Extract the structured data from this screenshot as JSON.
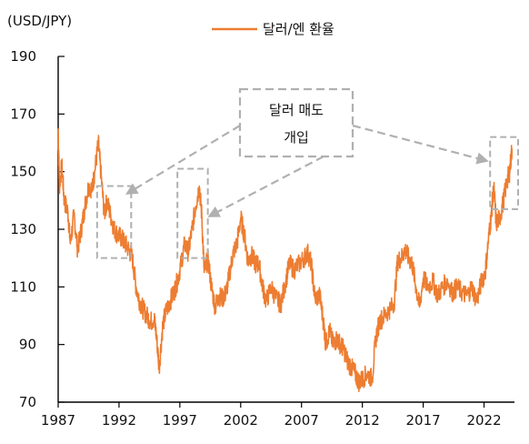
{
  "chart_data": {
    "type": "line",
    "unit_label": "(USD/JPY)",
    "title": "",
    "xlabel": "",
    "ylabel": "",
    "legend": {
      "position": "top-center",
      "entries": [
        "달러/엔 환율"
      ]
    },
    "grid": false,
    "xlim": [
      1987,
      2024.5
    ],
    "ylim": [
      70,
      190
    ],
    "x_ticks": [
      1987,
      1992,
      1997,
      2002,
      2007,
      2012,
      2017,
      2022
    ],
    "x_tick_labels": [
      "1987",
      "1992",
      "1997",
      "2002",
      "2007",
      "2012",
      "2017",
      "2022"
    ],
    "y_ticks": [
      70,
      90,
      110,
      130,
      150,
      170,
      190
    ],
    "y_tick_labels": [
      "70",
      "90",
      "110",
      "130",
      "150",
      "170",
      "190"
    ],
    "series": [
      {
        "name": "달러/엔 환율",
        "color": "#ED7D31",
        "x": [
          1987.0,
          1987.1,
          1987.3,
          1987.5,
          1987.8,
          1988.0,
          1988.3,
          1988.6,
          1988.9,
          1989.2,
          1989.5,
          1989.8,
          1990.0,
          1990.3,
          1990.5,
          1990.8,
          1991.0,
          1991.3,
          1991.6,
          1991.9,
          1992.2,
          1992.5,
          1992.8,
          1993.1,
          1993.4,
          1993.7,
          1994.0,
          1994.3,
          1994.6,
          1994.9,
          1995.1,
          1995.3,
          1995.6,
          1995.9,
          1996.2,
          1996.5,
          1996.8,
          1997.1,
          1997.4,
          1997.7,
          1998.0,
          1998.3,
          1998.6,
          1998.8,
          1999.0,
          1999.3,
          1999.6,
          1999.9,
          2000.2,
          2000.5,
          2000.8,
          2001.1,
          2001.4,
          2001.7,
          2002.0,
          2002.3,
          2002.6,
          2002.9,
          2003.2,
          2003.5,
          2003.8,
          2004.1,
          2004.5,
          2004.9,
          2005.3,
          2005.7,
          2006.0,
          2006.4,
          2006.8,
          2007.2,
          2007.5,
          2007.8,
          2008.1,
          2008.5,
          2008.8,
          2009.0,
          2009.3,
          2009.6,
          2009.9,
          2010.2,
          2010.5,
          2010.8,
          2011.1,
          2011.4,
          2011.7,
          2012.0,
          2012.4,
          2012.8,
          2013.1,
          2013.4,
          2013.8,
          2014.2,
          2014.6,
          2014.9,
          2015.2,
          2015.5,
          2015.8,
          2016.1,
          2016.4,
          2016.7,
          2017.0,
          2017.4,
          2017.8,
          2018.2,
          2018.6,
          2019.0,
          2019.4,
          2019.8,
          2020.2,
          2020.6,
          2021.0,
          2021.4,
          2021.8,
          2022.1,
          2022.4,
          2022.6,
          2022.8,
          2023.0,
          2023.3,
          2023.6,
          2023.9,
          2024.1,
          2024.3
        ],
        "values": [
          165,
          145,
          152,
          140,
          136,
          125,
          135,
          123,
          130,
          138,
          145,
          144,
          150,
          160,
          150,
          135,
          140,
          135,
          130,
          128,
          127,
          125,
          123,
          120,
          110,
          105,
          102,
          100,
          98,
          99,
          92,
          82,
          97,
          102,
          105,
          108,
          112,
          118,
          125,
          122,
          130,
          138,
          145,
          135,
          115,
          120,
          110,
          103,
          107,
          106,
          108,
          115,
          122,
          125,
          134,
          128,
          119,
          121,
          118,
          118,
          110,
          105,
          110,
          106,
          104,
          112,
          118,
          116,
          118,
          120,
          122,
          118,
          106,
          107,
          98,
          90,
          95,
          90,
          92,
          90,
          88,
          84,
          82,
          80,
          77,
          78,
          80,
          78,
          92,
          98,
          100,
          102,
          104,
          119,
          120,
          123,
          120,
          118,
          110,
          103,
          113,
          110,
          112,
          107,
          110,
          112,
          108,
          110,
          108,
          107,
          110,
          105,
          112,
          115,
          128,
          135,
          145,
          132,
          134,
          140,
          147,
          150,
          158
        ]
      }
    ],
    "annotations": {
      "callout_lines": [
        "달러 매도",
        "개입"
      ],
      "highlighted_periods": [
        {
          "x_range": [
            1990.2,
            1993.0
          ],
          "y_range": [
            120,
            145
          ]
        },
        {
          "x_range": [
            1996.8,
            1999.3
          ],
          "y_range": [
            120,
            151
          ]
        },
        {
          "x_range": [
            2022.5,
            2024.8
          ],
          "y_range": [
            137,
            162
          ]
        }
      ],
      "arrow_color": "#B0B0B0"
    }
  }
}
